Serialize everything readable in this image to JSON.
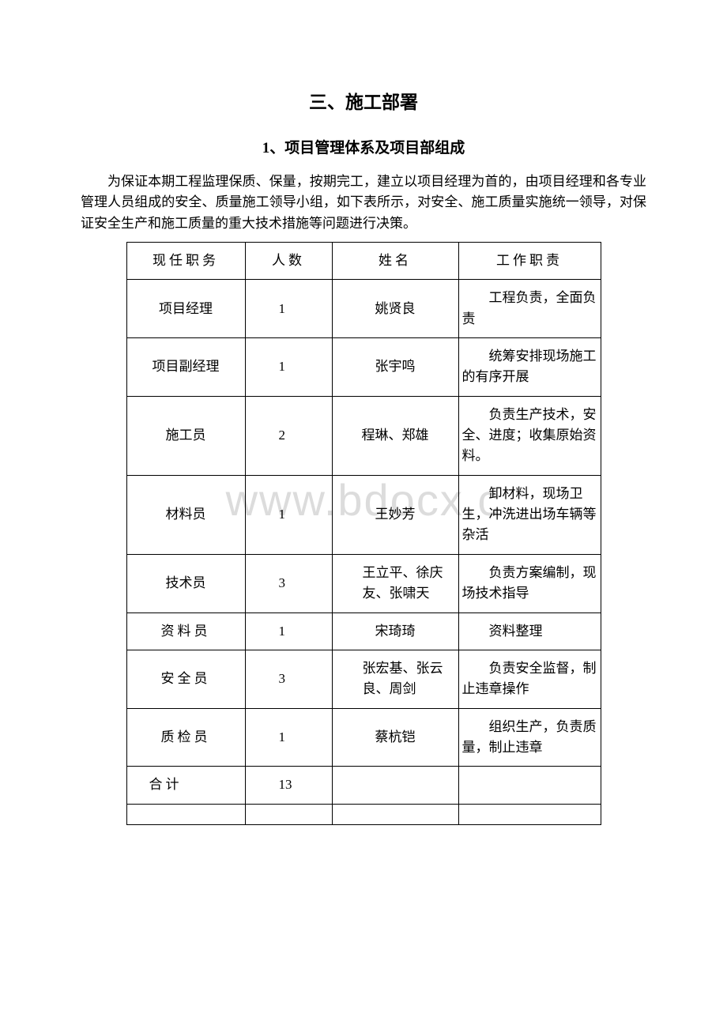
{
  "heading": {
    "main": "三、施工部署",
    "sub": "1、项目管理体系及项目部组成"
  },
  "intro": "为保证本期工程监理保质、保量，按期完工，建立以项目经理为首的，由项目经理和各专业管理人员组成的安全、质量施工领导小组，如下表所示，对安全、施工质量实施统一领导，对保证安全生产和施工质量的重大技术措施等问题进行决策。",
  "watermark": "www.bdocx.c",
  "table": {
    "headers": {
      "position": "现任职务",
      "count": "人数",
      "name": "姓名",
      "duty": "工作职责"
    },
    "rows": [
      {
        "position": "项目经理",
        "count": "1",
        "name": "姚贤良",
        "duty": "工程负责，全面负责"
      },
      {
        "position": "项目副经理",
        "count": "1",
        "name": "张宇鸣",
        "duty": "统筹安排现场施工的有序开展"
      },
      {
        "position": "施工员",
        "count": "2",
        "name": "程琳、郑雄",
        "duty": "负责生产技术，安全、进度；收集原始资料。"
      },
      {
        "position": "材料员",
        "count": "1",
        "name": "王妙芳",
        "duty": "卸材料，现场卫生，冲洗进出场车辆等杂活"
      },
      {
        "position": "技术员",
        "count": "3",
        "name": "王立平、徐庆友、张啸天",
        "duty": "负责方案编制，现场技术指导"
      },
      {
        "position": "资料员",
        "count": "1",
        "name": "宋琦琦",
        "duty": "资料整理"
      },
      {
        "position": "安全员",
        "count": "3",
        "name": "张宏基、张云良、周剑",
        "duty": "负责安全监督，制止违章操作"
      },
      {
        "position": "质检员",
        "count": "1",
        "name": "蔡杭铠",
        "duty": "组织生产，负责质量，制止违章"
      }
    ],
    "total": {
      "label": "合计",
      "count": "13"
    }
  }
}
